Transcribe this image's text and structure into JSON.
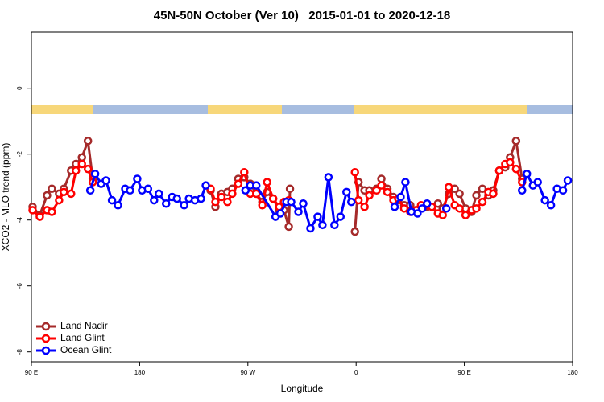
{
  "chart_data": {
    "type": "line",
    "title": "45N-50N October (Ver 10)   2015-01-01 to 2020-12-18",
    "x_label": "Longitude",
    "y_label": "XCO2 - MLO trend (ppm)",
    "xlim": [
      90,
      540
    ],
    "ylim": [
      -8.3,
      1.7
    ],
    "xticks": [
      {
        "value": 90,
        "label": "90 E"
      },
      180,
      {
        "value": 270,
        "label": "90 W"
      },
      {
        "value": 360,
        "label": "0"
      },
      {
        "value": 450,
        "label": "90 E"
      },
      {
        "value": 540,
        "label": "180"
      }
    ],
    "yticks": [
      -8,
      -6,
      -4,
      -2,
      0
    ],
    "legend": "bottom-left",
    "series": [
      {
        "name": "Land Nadir",
        "color": "#a52a2a",
        "x": [
          91,
          97,
          103,
          107,
          113,
          117,
          123,
          127,
          132,
          137,
          141,
          190,
          239,
          243,
          248,
          253,
          257,
          262,
          267,
          272,
          277,
          282,
          286,
          291,
          296,
          300,
          304,
          305,
          330,
          359,
          362,
          367,
          371,
          377,
          381,
          386,
          391,
          395,
          400,
          405,
          410,
          414,
          419,
          423,
          428,
          432,
          437,
          442,
          446,
          451,
          456,
          460,
          465,
          470,
          474,
          479,
          484,
          488,
          493,
          498
        ],
        "values": [
          -3.6,
          -3.85,
          -3.25,
          -3.05,
          -3.2,
          -3.05,
          -2.5,
          -2.3,
          -2.1,
          -1.6,
          -2.75,
          null,
          -3.1,
          -3.6,
          -3.2,
          -3.15,
          -3.05,
          -2.75,
          -2.7,
          -2.9,
          -3.2,
          -3.45,
          -3.15,
          -3.35,
          -3.7,
          -3.7,
          -4.2,
          -3.05,
          null,
          -4.35,
          -2.85,
          -3.1,
          -3.1,
          -3.05,
          -2.75,
          -3.05,
          -3.3,
          -3.4,
          -3.55,
          -3.55,
          -3.7,
          -3.6,
          -3.6,
          -3.6,
          -3.5,
          -3.65,
          -3.2,
          -3.05,
          -3.2,
          -3.65,
          -3.75,
          -3.25,
          -3.05,
          -3.25,
          -3.1,
          -2.5,
          -2.4,
          -2.1,
          -1.6,
          -2.75
        ]
      },
      {
        "name": "Land Glint",
        "color": "#ff0000",
        "x": [
          91,
          97,
          103,
          107,
          113,
          117,
          123,
          127,
          132,
          137,
          141,
          190,
          239,
          243,
          248,
          253,
          257,
          262,
          267,
          272,
          277,
          282,
          286,
          291,
          296,
          300,
          304,
          330,
          359,
          362,
          367,
          371,
          377,
          381,
          386,
          391,
          395,
          400,
          405,
          410,
          414,
          419,
          423,
          428,
          432,
          437,
          442,
          446,
          451,
          456,
          460,
          465,
          470,
          474,
          479,
          484,
          488,
          493,
          498
        ],
        "values": [
          -3.7,
          -3.9,
          -3.7,
          -3.75,
          -3.4,
          -3.15,
          -3.2,
          -2.5,
          -2.3,
          -2.45,
          -2.85,
          null,
          -3.05,
          -3.45,
          -3.3,
          -3.45,
          -3.2,
          -2.9,
          -2.55,
          -3.2,
          -3.2,
          -3.55,
          -2.85,
          -3.35,
          -3.6,
          -3.45,
          -3.4,
          null,
          -2.55,
          -3.4,
          -3.6,
          -3.25,
          -3.1,
          -2.95,
          -3.15,
          -3.4,
          -3.35,
          -3.65,
          -3.75,
          -3.7,
          -3.55,
          -3.55,
          -3.6,
          -3.8,
          -3.85,
          -3.0,
          -3.55,
          -3.65,
          -3.85,
          -3.7,
          -3.65,
          -3.45,
          -3.15,
          -3.2,
          -2.5,
          -2.3,
          -2.25,
          -2.45,
          -2.85
        ]
      },
      {
        "name": "Ocean Glint",
        "color": "#0000ff",
        "x": [
          139,
          143,
          148,
          152,
          157,
          162,
          168,
          172,
          178,
          182,
          187,
          192,
          196,
          202,
          207,
          211,
          217,
          221,
          226,
          231,
          235,
          250,
          268,
          272,
          277,
          293,
          297,
          302,
          306,
          312,
          316,
          322,
          328,
          332,
          337,
          342,
          347,
          352,
          356,
          370,
          392,
          397,
          401,
          406,
          411,
          415,
          419,
          425,
          435,
          470,
          498,
          502,
          507,
          511,
          517,
          522,
          527,
          532,
          536
        ],
        "values": [
          -3.1,
          -2.6,
          -2.9,
          -2.8,
          -3.4,
          -3.55,
          -3.05,
          -3.1,
          -2.75,
          -3.1,
          -3.05,
          -3.4,
          -3.2,
          -3.5,
          -3.3,
          -3.35,
          -3.55,
          -3.35,
          -3.4,
          -3.35,
          -2.95,
          null,
          -3.1,
          -2.95,
          -2.95,
          -3.9,
          -3.8,
          -3.45,
          -3.45,
          -3.75,
          -3.5,
          -4.25,
          -3.9,
          -4.15,
          -2.7,
          -4.15,
          -3.9,
          -3.15,
          -3.45,
          null,
          -3.6,
          -3.3,
          -2.85,
          -3.75,
          -3.8,
          -3.65,
          -3.5,
          null,
          -3.65,
          null,
          -3.1,
          -2.6,
          -2.95,
          -2.85,
          -3.4,
          -3.55,
          -3.05,
          -3.1,
          -2.8
        ]
      }
    ]
  }
}
